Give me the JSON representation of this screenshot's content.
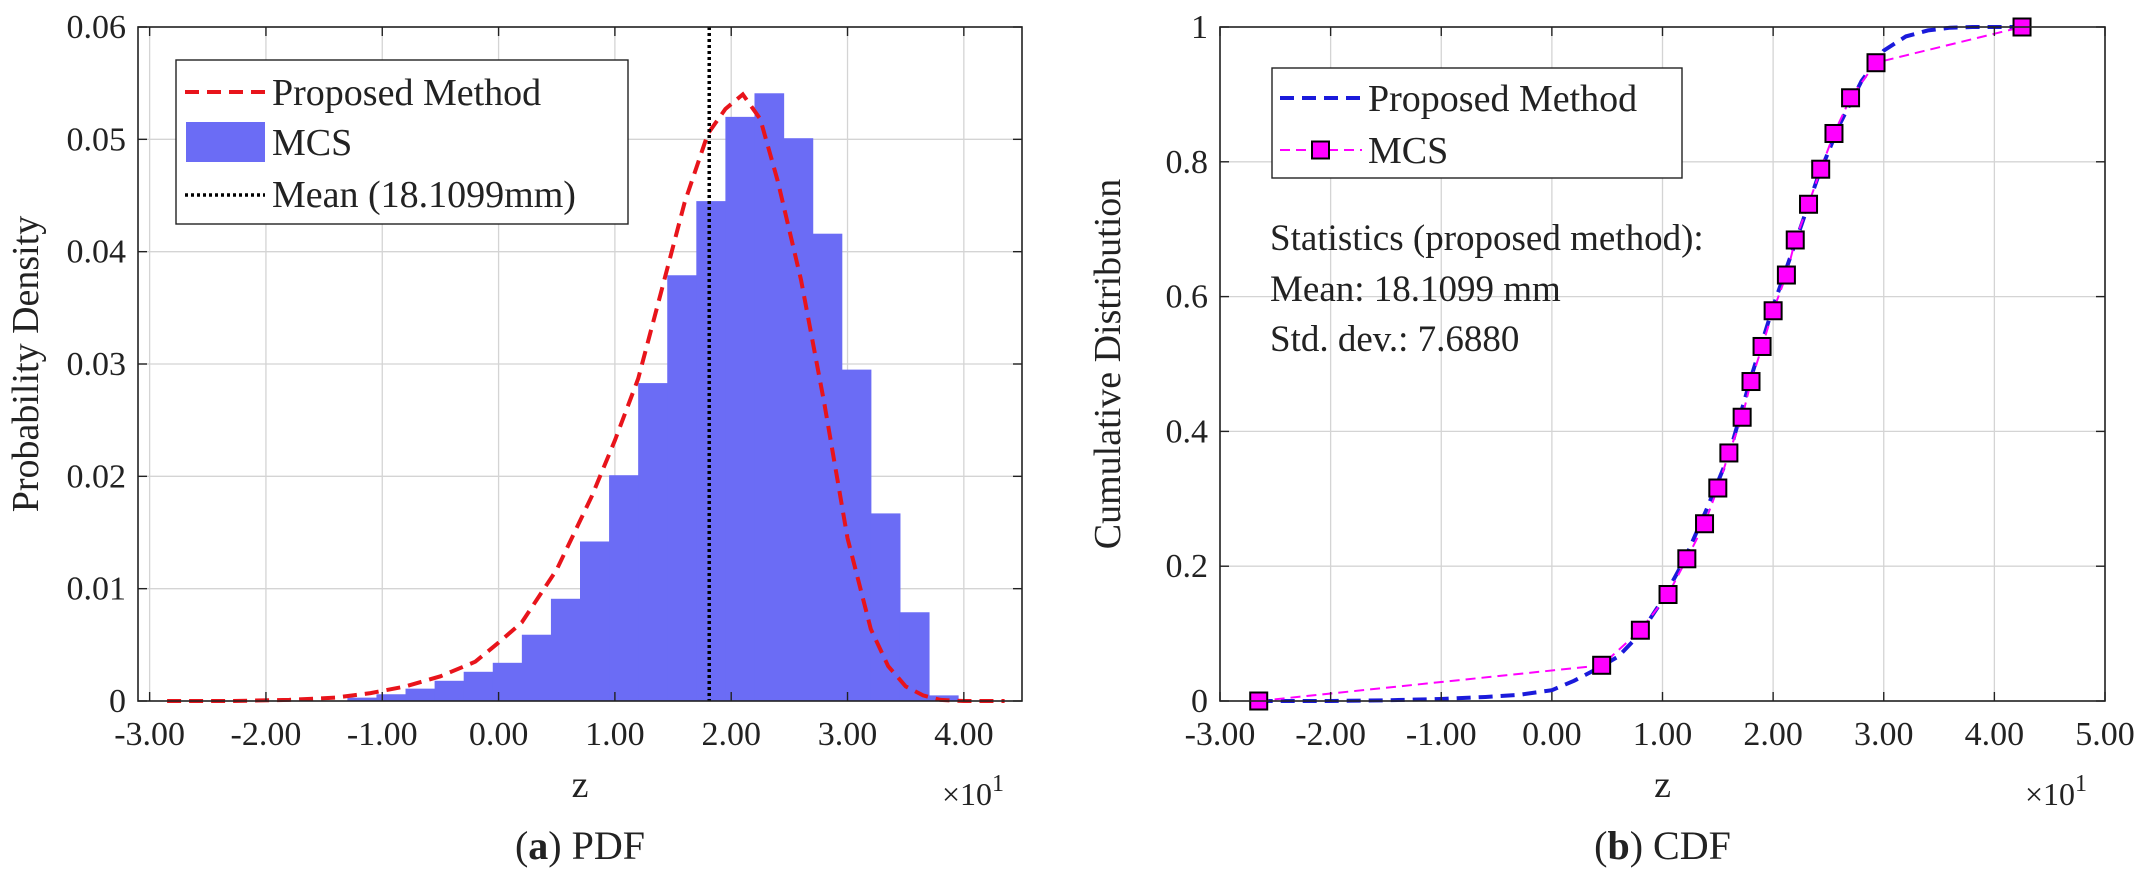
{
  "chart_data": [
    {
      "type": "histogram",
      "caption": {
        "letter": "a",
        "text": "PDF"
      },
      "xlabel": "z",
      "ylabel": "Probability Density",
      "x_multiplier": {
        "base": "×10",
        "exp": "1"
      },
      "xlim": [
        -3.1,
        4.5
      ],
      "ylim": [
        0,
        0.06
      ],
      "xticks": [
        -3,
        -2,
        -1,
        0,
        1,
        2,
        3,
        4
      ],
      "xtick_labels": [
        "-3.00",
        "-2.00",
        "-1.00",
        "0.00",
        "1.00",
        "2.00",
        "3.00",
        "4.00"
      ],
      "yticks": [
        0,
        0.01,
        0.02,
        0.03,
        0.04,
        0.05,
        0.06
      ],
      "ytick_labels": [
        "0",
        "0.01",
        "0.02",
        "0.03",
        "0.04",
        "0.05",
        "0.06"
      ],
      "grid": true,
      "legend_position": "top-left",
      "legend": [
        {
          "label": "Proposed Method",
          "kind": "dashed-line",
          "color": "#e8141b"
        },
        {
          "label": "MCS",
          "kind": "patch",
          "color": "#6b6cf5"
        },
        {
          "label": "Mean (18.1099mm)",
          "kind": "dotted-line",
          "color": "#000000"
        }
      ],
      "bin_edges": [
        -1.3,
        -1.05,
        -0.8,
        -0.55,
        -0.3,
        -0.05,
        0.2,
        0.45,
        0.7,
        0.95,
        1.2,
        1.45,
        1.7,
        1.95,
        2.2,
        2.45,
        2.7,
        2.95,
        3.2,
        3.45,
        3.7,
        3.95
      ],
      "bin_values": [
        0.0003,
        0.0006,
        0.0011,
        0.0018,
        0.0026,
        0.0034,
        0.0059,
        0.0091,
        0.0142,
        0.0201,
        0.0283,
        0.0379,
        0.0445,
        0.052,
        0.0541,
        0.0501,
        0.0416,
        0.0295,
        0.0167,
        0.0079,
        0.0005
      ],
      "curve": {
        "name": "Proposed Method",
        "x": [
          -2.85,
          -2.3,
          -1.8,
          -1.4,
          -1.1,
          -0.8,
          -0.5,
          -0.2,
          0.0,
          0.2,
          0.5,
          0.8,
          1.0,
          1.2,
          1.4,
          1.6,
          1.8,
          1.95,
          2.1,
          2.25,
          2.4,
          2.6,
          2.8,
          3.0,
          3.2,
          3.35,
          3.5,
          3.65,
          3.8,
          4.0,
          4.35
        ],
        "y": [
          0.0,
          0.0,
          0.0001,
          0.0003,
          0.0007,
          0.0013,
          0.0022,
          0.0035,
          0.0052,
          0.007,
          0.0117,
          0.0182,
          0.0232,
          0.0287,
          0.0365,
          0.0444,
          0.0505,
          0.0527,
          0.054,
          0.0518,
          0.0463,
          0.0375,
          0.0265,
          0.0145,
          0.0064,
          0.0031,
          0.0013,
          0.0005,
          0.0001,
          0.0,
          0.0
        ]
      },
      "mean_line": {
        "label": "Mean (18.1099mm)",
        "x": 1.81099
      }
    },
    {
      "type": "line",
      "caption": {
        "letter": "b",
        "text": "CDF"
      },
      "xlabel": "z",
      "ylabel": "Cumulative Distribution",
      "x_multiplier": {
        "base": "×10",
        "exp": "1"
      },
      "xlim": [
        -3.0,
        5.0
      ],
      "ylim": [
        0,
        1
      ],
      "xticks": [
        -3,
        -2,
        -1,
        0,
        1,
        2,
        3,
        4,
        5
      ],
      "xtick_labels": [
        "-3.00",
        "-2.00",
        "-1.00",
        "0.00",
        "1.00",
        "2.00",
        "3.00",
        "4.00",
        "5.00"
      ],
      "yticks": [
        0,
        0.2,
        0.4,
        0.6,
        0.8,
        1
      ],
      "ytick_labels": [
        "0",
        "0.2",
        "0.4",
        "0.6",
        "0.8",
        "1"
      ],
      "grid": true,
      "legend_position": "top-left",
      "legend": [
        {
          "label": "Proposed Method",
          "kind": "dashed-line",
          "color": "#1a1adb"
        },
        {
          "label": "MCS",
          "kind": "line-square-marker",
          "color": "#ff00ff"
        }
      ],
      "stats": {
        "title": "Statistics (proposed method):",
        "mean": "Mean: 18.1099 mm",
        "std": "Std. dev.: 7.6880"
      },
      "series": [
        {
          "name": "Proposed Method",
          "color": "#1a1adb",
          "x": [
            -2.65,
            -2.0,
            -1.5,
            -1.0,
            -0.6,
            -0.3,
            0.0,
            0.2,
            0.4,
            0.6,
            0.8,
            1.0,
            1.2,
            1.4,
            1.6,
            1.8,
            2.0,
            2.2,
            2.4,
            2.6,
            2.8,
            3.0,
            3.2,
            3.4,
            3.6,
            3.8,
            4.0,
            4.25
          ],
          "y": [
            0.0,
            0.0,
            0.001,
            0.003,
            0.006,
            0.009,
            0.016,
            0.03,
            0.047,
            0.066,
            0.1,
            0.15,
            0.21,
            0.285,
            0.365,
            0.48,
            0.585,
            0.68,
            0.775,
            0.855,
            0.92,
            0.965,
            0.986,
            0.995,
            0.999,
            1.0,
            1.0,
            1.0
          ]
        },
        {
          "name": "MCS",
          "color": "#ff00ff",
          "x": [
            -2.65,
            0.45,
            0.8,
            1.05,
            1.22,
            1.38,
            1.5,
            1.6,
            1.72,
            1.8,
            1.9,
            2.0,
            2.12,
            2.2,
            2.32,
            2.43,
            2.55,
            2.7,
            2.93,
            4.25
          ],
          "y": [
            0.0,
            0.053,
            0.105,
            0.158,
            0.211,
            0.263,
            0.316,
            0.368,
            0.421,
            0.474,
            0.526,
            0.579,
            0.632,
            0.684,
            0.737,
            0.789,
            0.842,
            0.895,
            0.947,
            1.0
          ]
        }
      ]
    }
  ]
}
